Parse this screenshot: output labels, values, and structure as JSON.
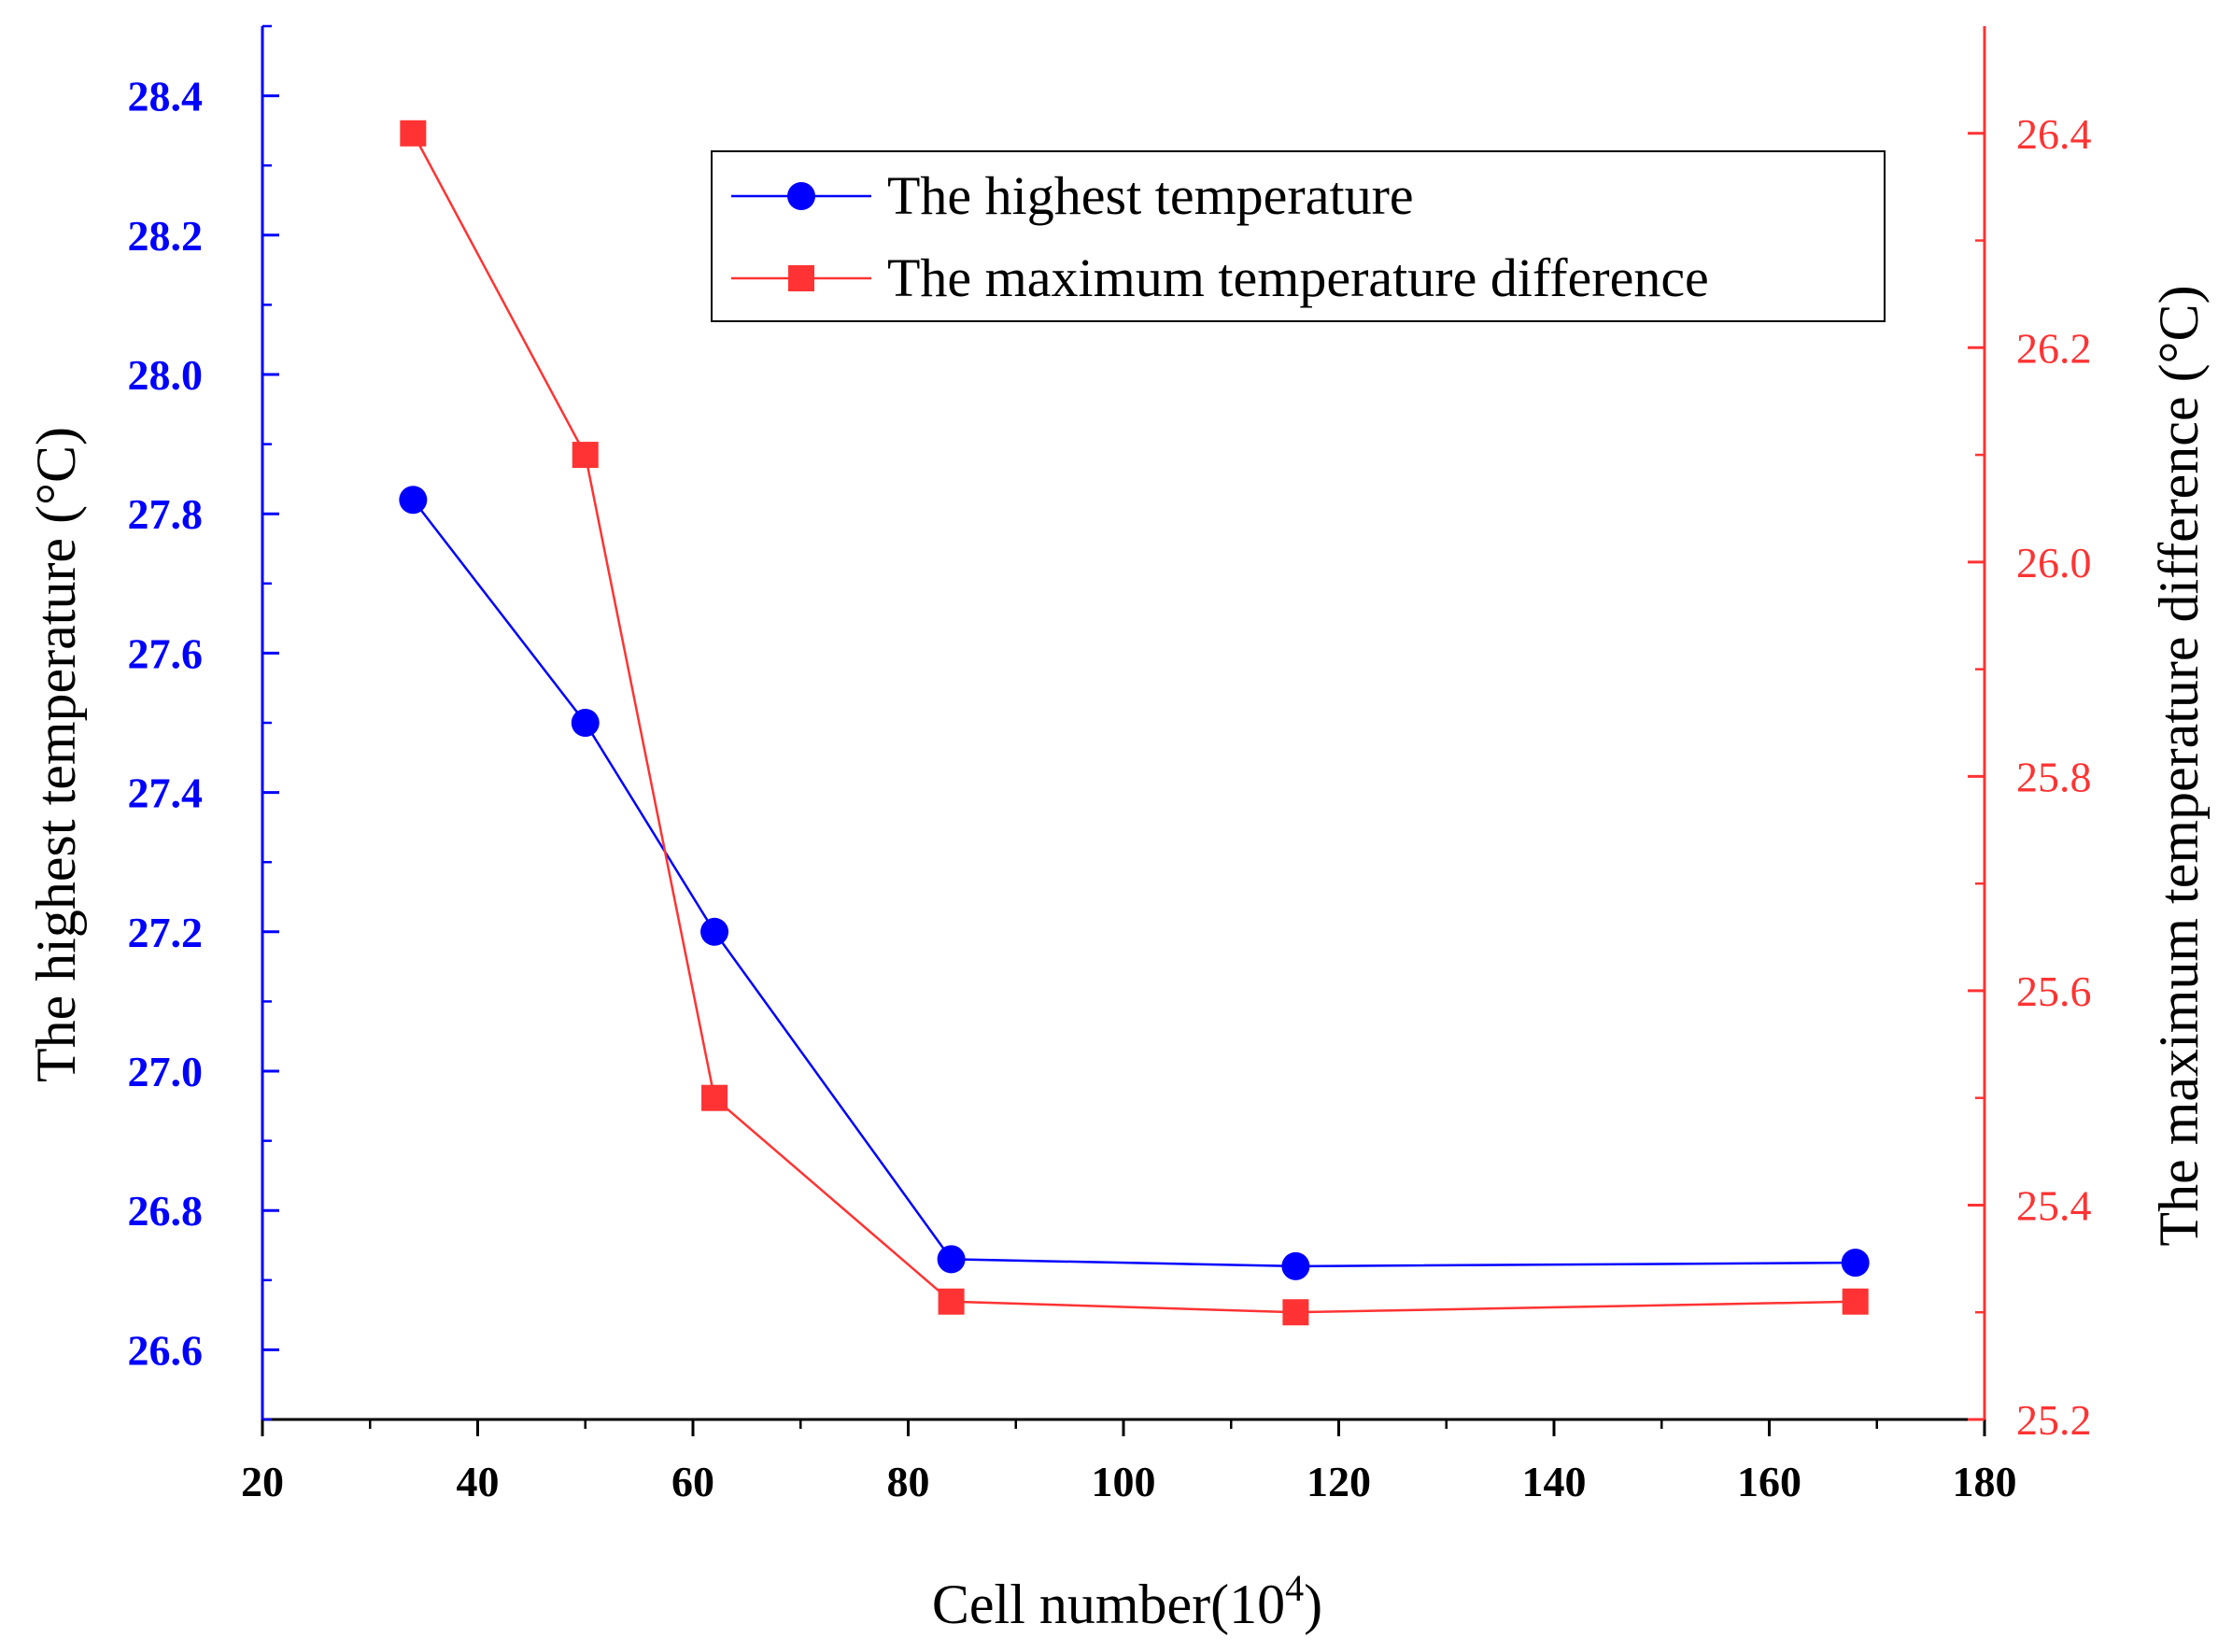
{
  "chart_data": {
    "type": "line",
    "x": [
      34,
      50,
      62,
      84,
      116,
      168
    ],
    "xlabel": "Cell number(10",
    "xlabel_superscript": "4",
    "xlabel_close": ")",
    "ylabel_left": "The highest temperature (°C)",
    "ylabel_right": "The maximum temperature difference (°C)",
    "xlim": [
      20,
      180
    ],
    "ylim_left": [
      26.5,
      28.5
    ],
    "ylim_right": [
      25.2,
      26.5
    ],
    "x_ticks": [
      "20",
      "40",
      "60",
      "80",
      "100",
      "120",
      "140",
      "160",
      "180"
    ],
    "x_tick_values": [
      20,
      40,
      60,
      80,
      100,
      120,
      140,
      160,
      180
    ],
    "y_left_ticks": [
      "26.6",
      "26.8",
      "27.0",
      "27.2",
      "27.4",
      "27.6",
      "27.8",
      "28.0",
      "28.2",
      "28.4"
    ],
    "y_left_tick_values": [
      26.6,
      26.8,
      27.0,
      27.2,
      27.4,
      27.6,
      27.8,
      28.0,
      28.2,
      28.4
    ],
    "y_right_ticks": [
      "25.2",
      "25.4",
      "25.6",
      "25.8",
      "26.0",
      "26.2",
      "26.4"
    ],
    "y_right_tick_values": [
      25.2,
      25.4,
      25.6,
      25.8,
      26.0,
      26.2,
      26.4
    ],
    "legend_position": "top-right",
    "grid": false,
    "series": [
      {
        "name": "The highest temperature",
        "axis": "left",
        "marker": "circle",
        "color": "#0000ff",
        "values": [
          27.82,
          27.5,
          27.2,
          26.73,
          26.72,
          26.725
        ]
      },
      {
        "name": "The maximum temperature difference",
        "axis": "right",
        "marker": "square",
        "color": "#ff3333",
        "values": [
          26.4,
          26.1,
          25.5,
          25.31,
          25.3,
          25.31
        ]
      }
    ]
  },
  "colors": {
    "left_axis": "#0000ff",
    "right_axis": "#ff3333",
    "bottom_axis": "#000000",
    "series_blue": "#0000ff",
    "series_red": "#ff3333"
  }
}
